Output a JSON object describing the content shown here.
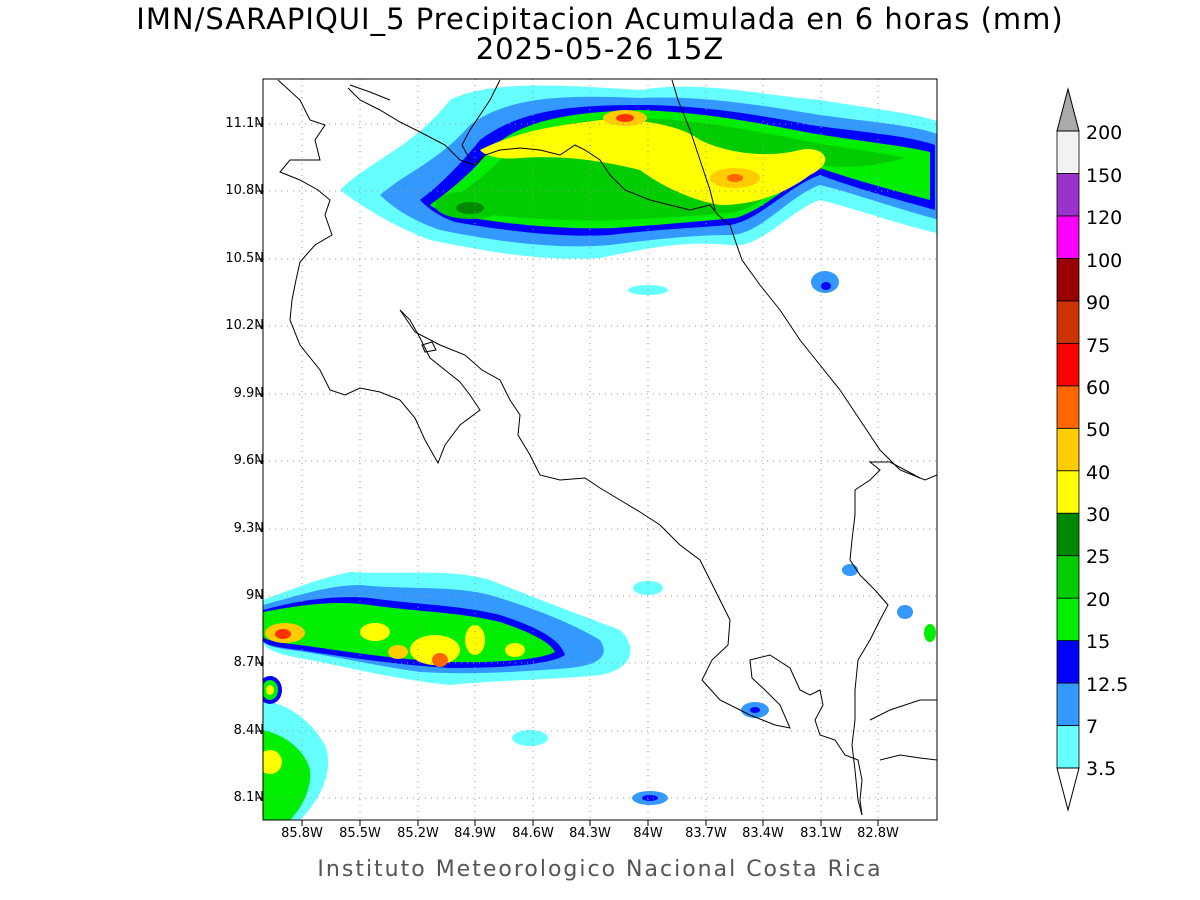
{
  "title": {
    "line1": "IMN/SARAPIQUI_5 Precipitacion Acumulada en 6 horas (mm)",
    "line2": "2025-05-26 15Z"
  },
  "axes": {
    "lat_ticks": [
      "11.1N",
      "10.8N",
      "10.5N",
      "10.2N",
      "9.9N",
      "9.6N",
      "9.3N",
      "9N",
      "8.7N",
      "8.4N",
      "8.1N"
    ],
    "lon_ticks": [
      "85.8W",
      "85.5W",
      "85.2W",
      "84.9W",
      "84.6W",
      "84.3W",
      "84W",
      "83.7W",
      "83.4W",
      "83.1W",
      "82.8W"
    ],
    "lat_range": [
      8.0,
      11.3
    ],
    "lon_range": [
      -85.9,
      -82.9
    ]
  },
  "colorbar": {
    "levels": [
      "3.5",
      "7",
      "12.5",
      "15",
      "20",
      "25",
      "30",
      "40",
      "50",
      "60",
      "75",
      "90",
      "100",
      "120",
      "150",
      "200"
    ],
    "colors": [
      "#66ffff",
      "#3399ff",
      "#0000ff",
      "#00ee00",
      "#00cc00",
      "#008800",
      "#ffff00",
      "#ffcc00",
      "#ff6600",
      "#ff0000",
      "#cc3300",
      "#990000",
      "#ff00ff",
      "#9933cc",
      "#f2f2f2",
      "#aaaaaa"
    ],
    "over_color": "#aaaaaa",
    "under_color": "#ffffff"
  },
  "footer": "Instituto Meteorologico Nacional Costa Rica"
}
